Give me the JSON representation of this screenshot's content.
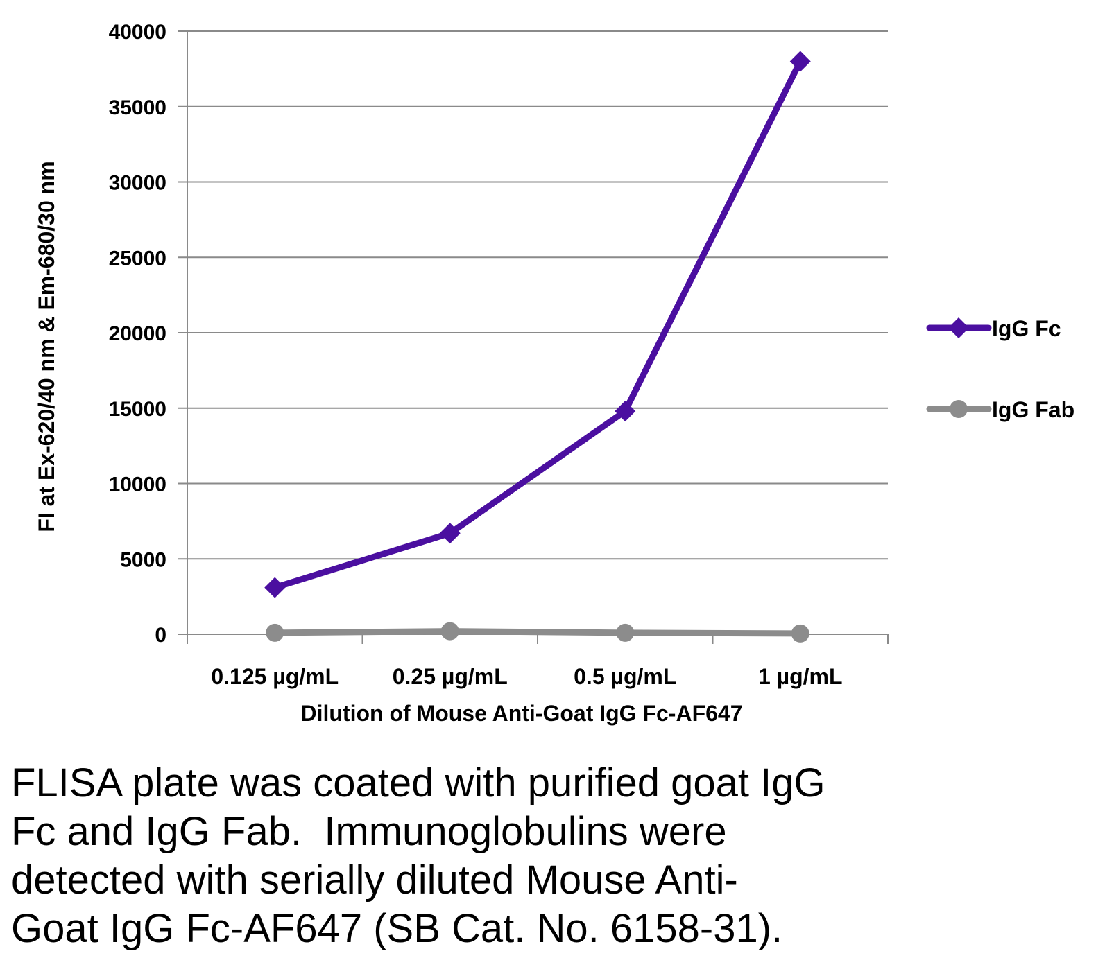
{
  "chart_data": {
    "type": "line",
    "categories": [
      "0.125 µg/mL",
      "0.25 µg/mL",
      "0.5 µg/mL",
      "1 µg/mL"
    ],
    "series": [
      {
        "name": "IgG Fc",
        "values": [
          3100,
          6700,
          14800,
          38000
        ],
        "color": "#4B0FA0",
        "marker": "diamond"
      },
      {
        "name": "IgG Fab",
        "values": [
          100,
          200,
          100,
          50
        ],
        "color": "#8C8C8C",
        "marker": "circle"
      }
    ],
    "xlabel": "Dilution of Mouse Anti-Goat IgG Fc-AF647",
    "ylabel": "FI at Ex-620/40 nm & Em-680/30 nm",
    "ylim": [
      0,
      40000
    ],
    "yticks": [
      0,
      5000,
      10000,
      15000,
      20000,
      25000,
      30000,
      35000,
      40000
    ],
    "grid": true,
    "legend_position": "right"
  },
  "caption": {
    "line1": "FLISA plate was coated with purified goat IgG",
    "line2": "Fc and IgG Fab.  Immunoglobulins were",
    "line3": "detected with serially diluted Mouse Anti-",
    "line4": "Goat IgG Fc-AF647 (SB Cat. No. 6158-31)."
  }
}
